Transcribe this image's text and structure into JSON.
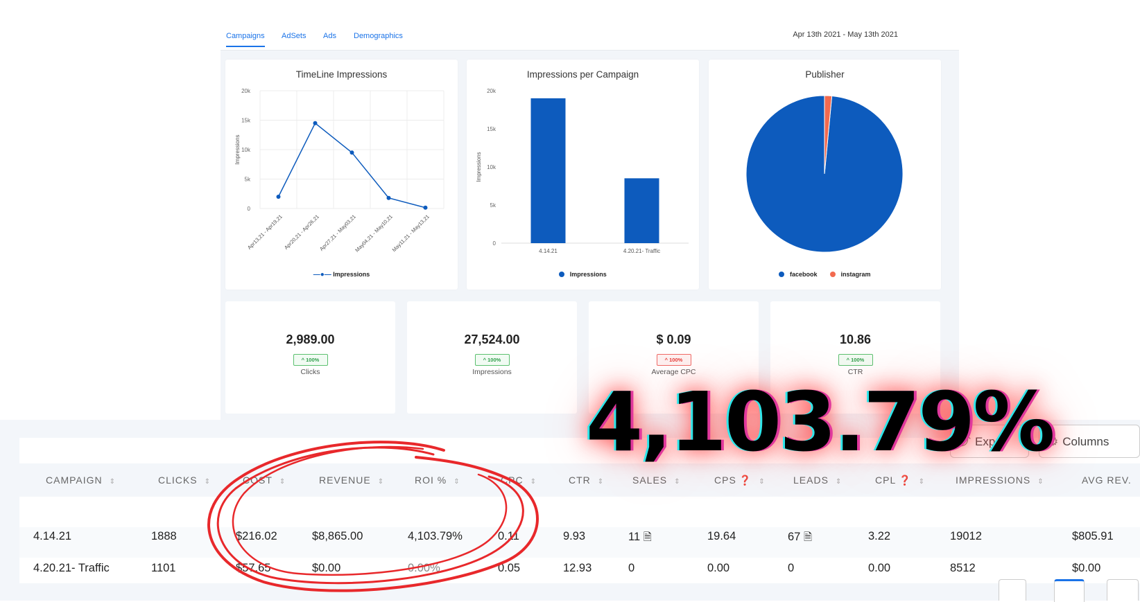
{
  "tabs": [
    {
      "label": "Campaigns",
      "active": true
    },
    {
      "label": "AdSets",
      "active": false
    },
    {
      "label": "Ads",
      "active": false
    },
    {
      "label": "Demographics",
      "active": false
    }
  ],
  "date_range": "Apr 13th 2021 - May 13th 2021",
  "colors": {
    "accent": "#1a73e8",
    "series": "#0d5bbd",
    "instagram": "#f26a4f",
    "annotation": "#e8282b"
  },
  "chart_data": [
    {
      "type": "line",
      "title": "TimeLine Impressions",
      "ylabel": "Impressions",
      "ylim": [
        0,
        20000
      ],
      "yticks": [
        "0",
        "5k",
        "10k",
        "15k",
        "20k"
      ],
      "categories": [
        "Apr13,21 - Apr19,21",
        "Apr20,21 - Apr26,21",
        "Apr27,21 - May03,21",
        "May04,21 - May10,21",
        "May11,21 - May13,21"
      ],
      "series": [
        {
          "name": "Impressions",
          "values": [
            2000,
            14500,
            9500,
            1800,
            150
          ]
        }
      ],
      "grid": true,
      "legend": "bottom"
    },
    {
      "type": "bar",
      "title": "Impressions per Campaign",
      "ylabel": "Impressions",
      "ylim": [
        0,
        20000
      ],
      "yticks": [
        "0",
        "5k",
        "10k",
        "15k",
        "20k"
      ],
      "categories": [
        "4.14.21",
        "4.20.21- Traffic"
      ],
      "series": [
        {
          "name": "Impressions",
          "values": [
            19012,
            8512
          ]
        }
      ],
      "legend": "bottom"
    },
    {
      "type": "pie",
      "title": "Publisher",
      "labels": [
        "facebook",
        "instagram"
      ],
      "values": [
        98.5,
        1.5
      ],
      "legend": "bottom"
    }
  ],
  "metrics": [
    {
      "value": "2,989.00",
      "badge": "^ 100%",
      "trend": "up",
      "label": "Clicks"
    },
    {
      "value": "27,524.00",
      "badge": "^ 100%",
      "trend": "up",
      "label": "Impressions"
    },
    {
      "value": "$ 0.09",
      "badge": "^ 100%",
      "trend": "down",
      "label": "Average CPC"
    },
    {
      "value": "10.86",
      "badge": "^ 100%",
      "trend": "up",
      "label": "CTR"
    }
  ],
  "table": {
    "export_label": "Expo",
    "columns_label": "Columns",
    "headers": [
      "CAMPAIGN",
      "CLICKS",
      "COST",
      "REVENUE",
      "ROI %",
      "CPC",
      "CTR",
      "SALES",
      "CPS",
      "LEADS",
      "CPL",
      "IMPRESSIONS",
      "AVG REV."
    ],
    "rows": [
      [
        "4.14.21",
        "1888",
        "$216.02",
        "$8,865.00",
        "4,103.79%",
        "0.11",
        "9.93",
        "11",
        "19.64",
        "67",
        "3.22",
        "19012",
        "$805.91"
      ],
      [
        "4.20.21- Traffic",
        "1101",
        "$57.65",
        "$0.00",
        "0.00%",
        "0.05",
        "12.93",
        "0",
        "0.00",
        "0",
        "0.00",
        "8512",
        "$0.00"
      ]
    ]
  },
  "overlay_text": "4,103.79%"
}
